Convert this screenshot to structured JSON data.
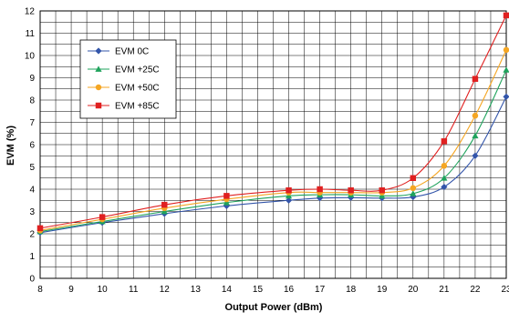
{
  "chart_data": {
    "type": "line",
    "xlabel": "Output Power (dBm)",
    "ylabel": "EVM (%)",
    "x_ticks": [
      8,
      9,
      10,
      11,
      12,
      13,
      14,
      15,
      16,
      17,
      18,
      19,
      20,
      21,
      22,
      23
    ],
    "y_ticks": [
      0,
      1,
      2,
      3,
      4,
      5,
      6,
      7,
      8,
      9,
      10,
      11,
      12
    ],
    "xlim": [
      8,
      23
    ],
    "ylim": [
      0,
      12
    ],
    "grid": true,
    "legend_position": "top-left",
    "x": [
      8,
      10,
      12,
      14,
      16,
      17,
      18,
      19,
      20,
      21,
      22,
      23
    ],
    "series": [
      {
        "name": "EVM 0C",
        "color": "#3355aa",
        "marker": "diamond",
        "values": [
          2.05,
          2.5,
          2.9,
          3.25,
          3.5,
          3.6,
          3.62,
          3.6,
          3.65,
          4.1,
          5.5,
          8.15
        ]
      },
      {
        "name": "EVM +25C",
        "color": "#1fa35c",
        "marker": "triangle",
        "values": [
          2.1,
          2.55,
          3.0,
          3.4,
          3.7,
          3.75,
          3.75,
          3.7,
          3.8,
          4.5,
          6.4,
          9.35
        ]
      },
      {
        "name": "EVM +50C",
        "color": "#f5a623",
        "marker": "circle",
        "values": [
          2.15,
          2.65,
          3.15,
          3.55,
          3.85,
          3.85,
          3.85,
          3.85,
          4.05,
          5.05,
          7.3,
          10.25
        ]
      },
      {
        "name": "EVM +85C",
        "color": "#e02020",
        "marker": "square",
        "values": [
          2.25,
          2.75,
          3.3,
          3.7,
          3.95,
          4.0,
          3.95,
          3.95,
          4.5,
          6.15,
          8.95,
          11.8
        ]
      }
    ]
  }
}
